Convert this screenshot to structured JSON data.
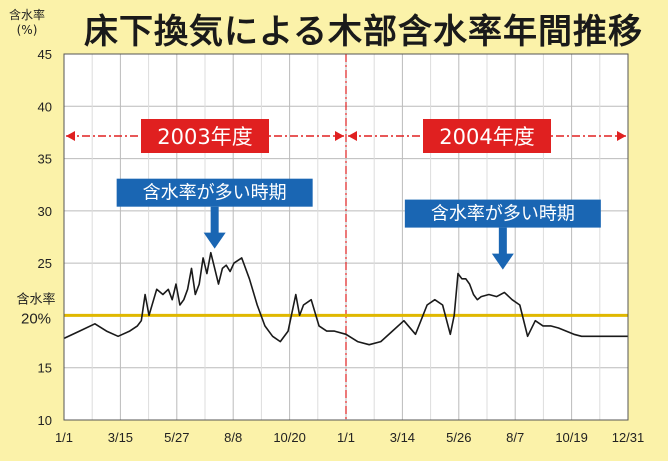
{
  "title": "床下換気による木部含水率年間推移",
  "chart_data": {
    "type": "line",
    "title": "床下換気による木部含水率年間推移",
    "ylabel": "含水率",
    "yunit": "(%)",
    "ylim": [
      10,
      45
    ],
    "yticks": [
      "10",
      "15",
      "20",
      "25",
      "30",
      "35",
      "40",
      "45"
    ],
    "xticks": [
      "1/1",
      "3/15",
      "5/27",
      "8/8",
      "10/20",
      "1/1",
      "3/14",
      "5/26",
      "8/7",
      "10/19",
      "12/31"
    ],
    "xlim": [
      0,
      730
    ],
    "grid": true,
    "colors": {
      "line": "#1a1a1a",
      "reference": "#e0b800",
      "divider": "#e02020",
      "callout": "#1a66b3",
      "period": "#e02020",
      "grid": "#bbbbbb"
    },
    "reference_line": {
      "value": 20,
      "label_top": "含水率",
      "label_bottom": "20%"
    },
    "periods": [
      {
        "label": "2003年度",
        "x_start": 0,
        "x_end": 365
      },
      {
        "label": "2004年度",
        "x_start": 365,
        "x_end": 730
      }
    ],
    "annotations": [
      {
        "label": "含水率が多い時期",
        "x": 195,
        "y": 26
      },
      {
        "label": "含水率が多い時期",
        "x": 568,
        "y": 24
      }
    ],
    "x": [
      0,
      20,
      40,
      55,
      70,
      85,
      95,
      100,
      105,
      110,
      120,
      128,
      135,
      140,
      145,
      150,
      155,
      160,
      165,
      170,
      175,
      180,
      185,
      190,
      195,
      200,
      205,
      210,
      215,
      220,
      230,
      240,
      250,
      260,
      270,
      280,
      290,
      300,
      305,
      310,
      320,
      330,
      340,
      350,
      365,
      380,
      395,
      410,
      425,
      440,
      455,
      470,
      480,
      490,
      500,
      505,
      510,
      515,
      520,
      525,
      530,
      535,
      540,
      550,
      560,
      570,
      580,
      590,
      600,
      610,
      620,
      630,
      640,
      650,
      660,
      670,
      680,
      690,
      700,
      710,
      720,
      730
    ],
    "y": [
      17.8,
      18.5,
      19.2,
      18.5,
      18.0,
      18.5,
      19.0,
      19.5,
      22.0,
      20.0,
      22.5,
      22.0,
      22.5,
      21.5,
      23.0,
      21.0,
      21.5,
      22.5,
      24.5,
      22.0,
      23.0,
      25.5,
      24.0,
      26.0,
      24.5,
      23.0,
      24.5,
      24.8,
      24.2,
      25.0,
      25.5,
      23.5,
      21.0,
      19.0,
      18.0,
      17.5,
      18.5,
      22.0,
      20.0,
      21.0,
      21.5,
      19.0,
      18.5,
      18.5,
      18.2,
      17.5,
      17.2,
      17.5,
      18.5,
      19.5,
      18.2,
      21.0,
      21.5,
      21.0,
      18.2,
      20.0,
      24.0,
      23.5,
      23.5,
      23.0,
      22.0,
      21.5,
      21.8,
      22.0,
      21.8,
      22.2,
      21.5,
      21.0,
      18.0,
      19.5,
      19.0,
      19.0,
      18.8,
      18.5,
      18.2,
      18.0,
      18.0,
      18.0,
      18.0,
      18.0,
      18.0,
      18.0
    ]
  }
}
